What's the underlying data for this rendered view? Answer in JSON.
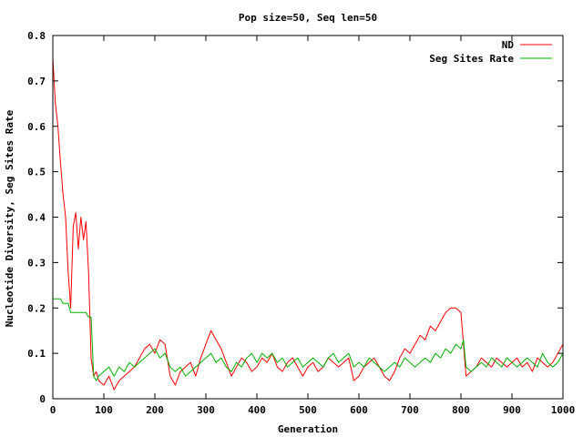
{
  "chart_data": {
    "type": "line",
    "title": "Pop size=50, Seq len=50",
    "xlabel": "Generation",
    "ylabel": "Nucleotide Diversity, Seg Sites Rate",
    "xlim": [
      0,
      1000
    ],
    "ylim": [
      0,
      0.8
    ],
    "xticks": [
      "0",
      "100",
      "200",
      "300",
      "400",
      "500",
      "600",
      "700",
      "800",
      "900",
      "1000"
    ],
    "yticks": [
      "0",
      "0.1",
      "0.2",
      "0.3",
      "0.4",
      "0.5",
      "0.6",
      "0.7",
      "0.8"
    ],
    "grid": false,
    "legend": "top-right",
    "series": [
      {
        "name": "ND",
        "color": "#ff0000",
        "x": [
          0,
          5,
          10,
          15,
          20,
          25,
          30,
          35,
          40,
          45,
          50,
          55,
          60,
          65,
          70,
          75,
          80,
          85,
          90,
          100,
          110,
          120,
          130,
          140,
          150,
          160,
          170,
          180,
          190,
          200,
          210,
          220,
          230,
          240,
          250,
          260,
          270,
          280,
          290,
          300,
          310,
          320,
          330,
          340,
          350,
          360,
          370,
          380,
          390,
          400,
          410,
          420,
          430,
          440,
          450,
          460,
          470,
          480,
          490,
          500,
          510,
          520,
          530,
          540,
          550,
          560,
          570,
          580,
          590,
          600,
          610,
          620,
          630,
          640,
          650,
          660,
          670,
          680,
          690,
          700,
          710,
          720,
          730,
          740,
          750,
          760,
          770,
          780,
          790,
          800,
          805,
          810,
          820,
          830,
          840,
          850,
          860,
          870,
          880,
          890,
          900,
          910,
          920,
          930,
          940,
          950,
          960,
          970,
          980,
          990,
          1000
        ],
        "y": [
          0.75,
          0.65,
          0.6,
          0.52,
          0.45,
          0.4,
          0.28,
          0.2,
          0.38,
          0.41,
          0.33,
          0.4,
          0.35,
          0.39,
          0.28,
          0.09,
          0.05,
          0.06,
          0.04,
          0.03,
          0.05,
          0.02,
          0.04,
          0.05,
          0.06,
          0.07,
          0.09,
          0.11,
          0.12,
          0.1,
          0.13,
          0.12,
          0.05,
          0.03,
          0.06,
          0.07,
          0.08,
          0.05,
          0.09,
          0.12,
          0.15,
          0.13,
          0.11,
          0.08,
          0.05,
          0.07,
          0.09,
          0.08,
          0.06,
          0.07,
          0.09,
          0.08,
          0.1,
          0.07,
          0.06,
          0.08,
          0.09,
          0.07,
          0.05,
          0.07,
          0.08,
          0.06,
          0.07,
          0.09,
          0.08,
          0.07,
          0.08,
          0.09,
          0.04,
          0.05,
          0.07,
          0.08,
          0.09,
          0.07,
          0.05,
          0.04,
          0.06,
          0.09,
          0.11,
          0.1,
          0.12,
          0.14,
          0.13,
          0.16,
          0.15,
          0.17,
          0.19,
          0.2,
          0.2,
          0.19,
          0.12,
          0.05,
          0.06,
          0.07,
          0.09,
          0.08,
          0.07,
          0.09,
          0.08,
          0.07,
          0.08,
          0.09,
          0.07,
          0.08,
          0.06,
          0.09,
          0.08,
          0.07,
          0.08,
          0.1,
          0.12
        ]
      },
      {
        "name": "Seg Sites Rate",
        "color": "#00b000",
        "x": [
          0,
          5,
          10,
          15,
          20,
          25,
          30,
          35,
          40,
          45,
          50,
          55,
          60,
          65,
          70,
          75,
          80,
          85,
          90,
          100,
          110,
          120,
          130,
          140,
          150,
          160,
          170,
          180,
          190,
          200,
          210,
          220,
          230,
          240,
          250,
          260,
          270,
          280,
          290,
          300,
          310,
          320,
          330,
          340,
          350,
          360,
          370,
          380,
          390,
          400,
          410,
          420,
          430,
          440,
          450,
          460,
          470,
          480,
          490,
          500,
          510,
          520,
          530,
          540,
          550,
          560,
          570,
          580,
          590,
          600,
          610,
          620,
          630,
          640,
          650,
          660,
          670,
          680,
          690,
          700,
          710,
          720,
          730,
          740,
          750,
          760,
          770,
          780,
          790,
          800,
          805,
          810,
          820,
          830,
          840,
          850,
          860,
          870,
          880,
          890,
          900,
          910,
          920,
          930,
          940,
          950,
          960,
          970,
          980,
          990,
          1000
        ],
        "y": [
          0.22,
          0.22,
          0.22,
          0.22,
          0.21,
          0.21,
          0.21,
          0.19,
          0.19,
          0.19,
          0.19,
          0.19,
          0.19,
          0.19,
          0.18,
          0.18,
          0.05,
          0.04,
          0.05,
          0.06,
          0.07,
          0.05,
          0.07,
          0.06,
          0.08,
          0.07,
          0.08,
          0.09,
          0.1,
          0.11,
          0.09,
          0.1,
          0.07,
          0.06,
          0.07,
          0.05,
          0.06,
          0.07,
          0.08,
          0.09,
          0.1,
          0.08,
          0.09,
          0.07,
          0.06,
          0.08,
          0.07,
          0.09,
          0.1,
          0.08,
          0.1,
          0.09,
          0.1,
          0.08,
          0.09,
          0.07,
          0.08,
          0.09,
          0.07,
          0.08,
          0.09,
          0.08,
          0.07,
          0.09,
          0.1,
          0.08,
          0.09,
          0.1,
          0.07,
          0.08,
          0.07,
          0.09,
          0.08,
          0.07,
          0.06,
          0.07,
          0.08,
          0.07,
          0.09,
          0.08,
          0.07,
          0.08,
          0.09,
          0.08,
          0.1,
          0.09,
          0.11,
          0.1,
          0.12,
          0.11,
          0.13,
          0.07,
          0.06,
          0.07,
          0.08,
          0.07,
          0.09,
          0.08,
          0.07,
          0.09,
          0.08,
          0.07,
          0.08,
          0.09,
          0.08,
          0.07,
          0.1,
          0.08,
          0.07,
          0.08,
          0.1
        ]
      }
    ]
  }
}
